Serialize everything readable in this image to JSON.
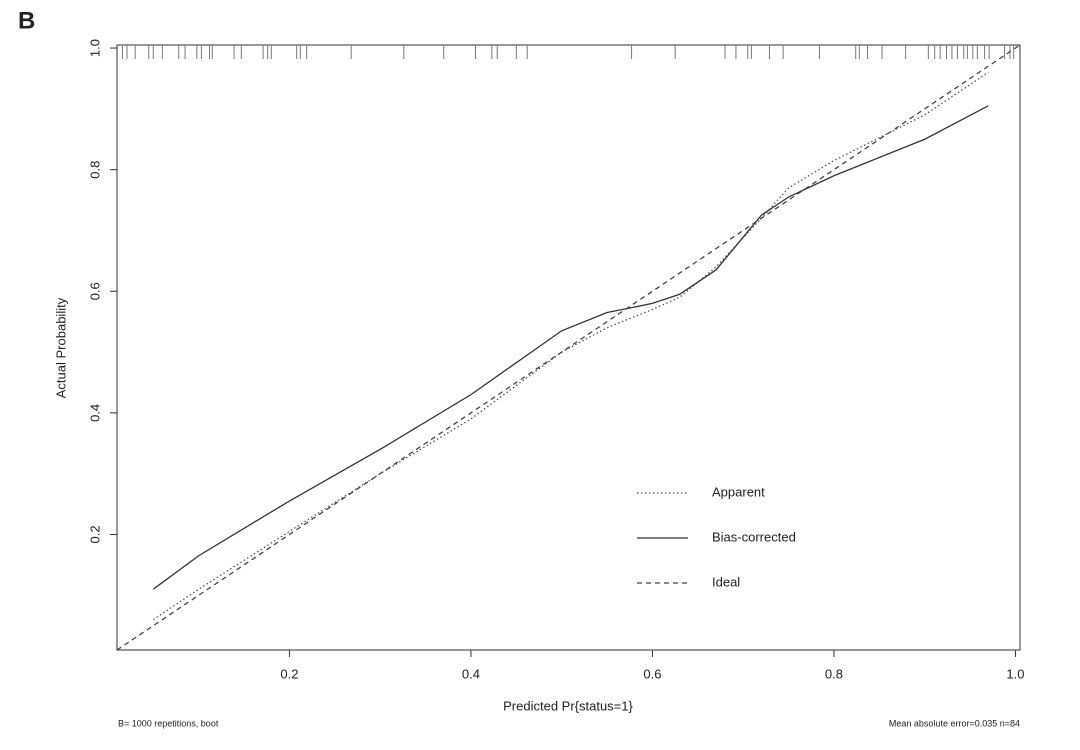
{
  "panel_label": "B",
  "chart_data": {
    "type": "line",
    "xlabel": "Predicted Pr{status=1}",
    "ylabel": "Actual Probability",
    "xlim": [
      0.01,
      1.005
    ],
    "ylim": [
      0.01,
      1.005
    ],
    "xticks": [
      0.2,
      0.4,
      0.6,
      0.8,
      {
        "value": 1,
        "label": "1.0"
      }
    ],
    "yticks": [
      0.2,
      0.4,
      0.6,
      0.8,
      {
        "value": 1,
        "label": "1.0"
      }
    ],
    "legend": "bottom-right",
    "series": [
      {
        "name": "Apparent",
        "color": "#555555",
        "linestyle": "dotted",
        "x": [
          0.05,
          0.1,
          0.2,
          0.3,
          0.4,
          0.5,
          0.55,
          0.6,
          0.63,
          0.67,
          0.72,
          0.75,
          0.8,
          0.9,
          0.97
        ],
        "values": [
          0.06,
          0.11,
          0.205,
          0.3,
          0.39,
          0.5,
          0.54,
          0.57,
          0.59,
          0.64,
          0.72,
          0.77,
          0.815,
          0.89,
          0.96
        ]
      },
      {
        "name": "Bias-corrected",
        "color": "#333333",
        "linestyle": "solid",
        "x": [
          0.05,
          0.1,
          0.2,
          0.3,
          0.4,
          0.5,
          0.55,
          0.6,
          0.63,
          0.67,
          0.72,
          0.75,
          0.8,
          0.9,
          0.97
        ],
        "values": [
          0.11,
          0.165,
          0.255,
          0.34,
          0.43,
          0.535,
          0.565,
          0.58,
          0.595,
          0.635,
          0.725,
          0.755,
          0.79,
          0.85,
          0.905
        ]
      },
      {
        "name": "Ideal",
        "color": "#444444",
        "linestyle": "dashed",
        "x": [
          0.01,
          1.005
        ],
        "values": [
          0.01,
          1.005
        ]
      }
    ],
    "rug": [
      0.016,
      0.021,
      0.03,
      0.045,
      0.05,
      0.06,
      0.078,
      0.085,
      0.098,
      0.103,
      0.112,
      0.115,
      0.139,
      0.147,
      0.171,
      0.176,
      0.18,
      0.208,
      0.212,
      0.219,
      0.268,
      0.326,
      0.37,
      0.405,
      0.423,
      0.429,
      0.45,
      0.462,
      0.577,
      0.625,
      0.68,
      0.692,
      0.705,
      0.709,
      0.729,
      0.744,
      0.784,
      0.824,
      0.828,
      0.837,
      0.853,
      0.879,
      0.904,
      0.911,
      0.917,
      0.924,
      0.93,
      0.936,
      0.943,
      0.947,
      0.953,
      0.958,
      0.966,
      0.971,
      0.988,
      0.994,
      0.998
    ],
    "footnote_left": "B= 1000 repetitions, boot",
    "footnote_right": "Mean absolute error=0.035 n=84"
  }
}
